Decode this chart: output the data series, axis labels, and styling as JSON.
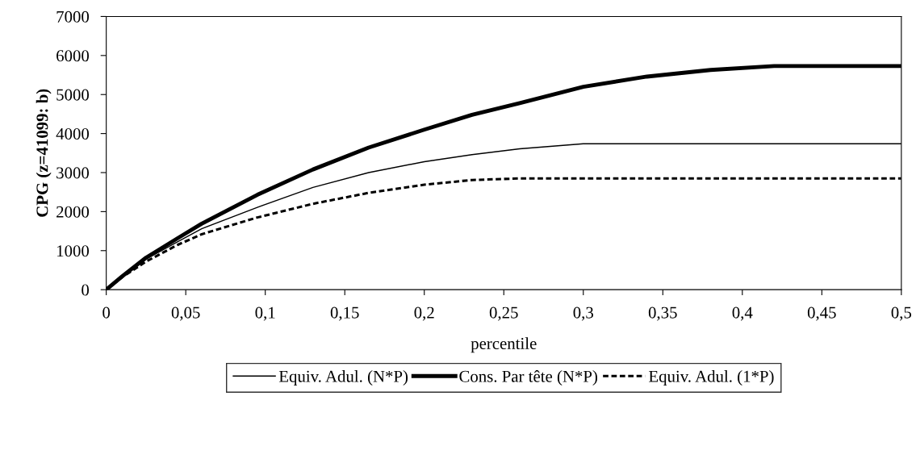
{
  "chart_data": {
    "type": "line",
    "xlabel": "percentile",
    "ylabel": "CPG (z=41099: b)",
    "x": [
      0,
      0.01,
      0.025,
      0.045,
      0.06,
      0.095,
      0.13,
      0.165,
      0.2,
      0.23,
      0.26,
      0.3,
      0.34,
      0.38,
      0.42,
      0.5
    ],
    "series": [
      {
        "name": "Equiv. Adul. (N*P)",
        "color": "#000000",
        "line_style": "solid",
        "values": [
          0,
          330,
          780,
          1230,
          1560,
          2110,
          2620,
          3000,
          3280,
          3460,
          3610,
          3740,
          3740,
          3740,
          3740,
          3740
        ]
      },
      {
        "name": "Cons. Par tête (N*P)",
        "color": "#000000",
        "line_style": "solid",
        "values": [
          0,
          340,
          820,
          1320,
          1690,
          2430,
          3080,
          3640,
          4100,
          4480,
          4780,
          5200,
          5460,
          5630,
          5730,
          5730
        ]
      },
      {
        "name": "Equiv. Adul. (1*P)",
        "color": "#000000",
        "line_style": "dotted",
        "values": [
          0,
          320,
          720,
          1150,
          1420,
          1850,
          2200,
          2480,
          2690,
          2810,
          2850,
          2850,
          2850,
          2850,
          2850,
          2850
        ]
      }
    ],
    "xlim": [
      0,
      0.5
    ],
    "ylim": [
      0,
      7000
    ],
    "xticks": [
      0,
      {
        "value": 0.05,
        "label": "0,05"
      },
      {
        "value": 0.1,
        "label": "0,1"
      },
      {
        "value": 0.15,
        "label": "0,15"
      },
      {
        "value": 0.2,
        "label": "0,2"
      },
      {
        "value": 0.25,
        "label": "0,25"
      },
      {
        "value": 0.3,
        "label": "0,3"
      },
      {
        "value": 0.35,
        "label": "0,35"
      },
      {
        "value": 0.4,
        "label": "0,4"
      },
      {
        "value": 0.45,
        "label": "0,45"
      },
      {
        "value": 0.5,
        "label": "0,5"
      }
    ],
    "yticks": [
      0,
      1000,
      2000,
      3000,
      4000,
      5000,
      6000,
      7000
    ],
    "grid": false,
    "legend": "bottom",
    "marker": "none"
  }
}
